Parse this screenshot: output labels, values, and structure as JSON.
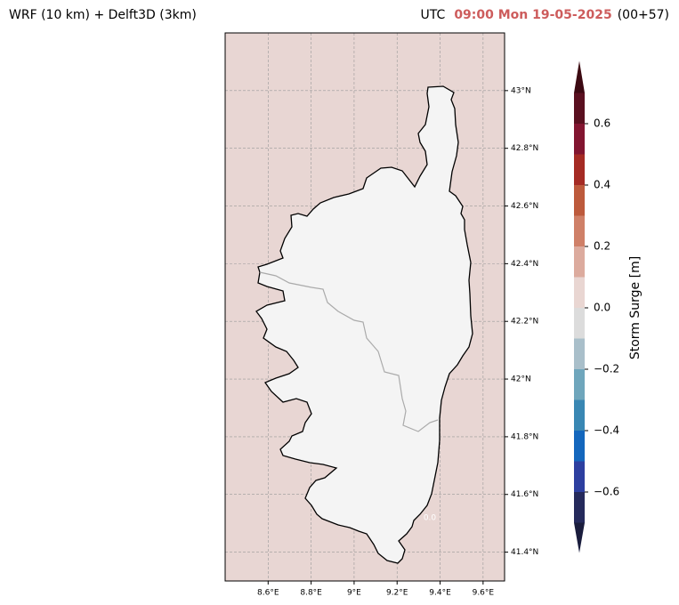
{
  "title_left": "WRF (10 km) + Delft3D (3km)",
  "title_right": {
    "prefix": "UTC",
    "time": "09:00 Mon 19-05-2025",
    "lead": "(00+57)"
  },
  "map": {
    "xlim": [
      8.4,
      9.7
    ],
    "ylim": [
      41.3,
      43.2
    ],
    "xticks": [
      {
        "value": 8.6,
        "label": "8.6°E"
      },
      {
        "value": 8.8,
        "label": "8.8°E"
      },
      {
        "value": 9.0,
        "label": "9°E"
      },
      {
        "value": 9.2,
        "label": "9.2°E"
      },
      {
        "value": 9.4,
        "label": "9.4°E"
      },
      {
        "value": 9.6,
        "label": "9.6°E"
      }
    ],
    "yticks": [
      {
        "value": 41.4,
        "label": "41.4°N"
      },
      {
        "value": 41.6,
        "label": "41.6°N"
      },
      {
        "value": 41.8,
        "label": "41.8°N"
      },
      {
        "value": 42.0,
        "label": "42°N"
      },
      {
        "value": 42.2,
        "label": "42.2°N"
      },
      {
        "value": 42.4,
        "label": "42.4°N"
      },
      {
        "value": 42.6,
        "label": "42.6°N"
      },
      {
        "value": 42.8,
        "label": "42.8°N"
      },
      {
        "value": 43.0,
        "label": "43°N"
      }
    ],
    "grid": true,
    "sea_color": "#e8d6d3",
    "land_color": "#f4f4f4",
    "contour_label": "0.0"
  },
  "colorbar": {
    "label": "Storm Surge [m]",
    "levels": [
      -0.7,
      -0.6,
      -0.5,
      -0.4,
      -0.3,
      -0.2,
      -0.1,
      0.0,
      0.1,
      0.2,
      0.3,
      0.4,
      0.5,
      0.6,
      0.7
    ],
    "colors": [
      "#252a5c",
      "#2d3fa0",
      "#1467bd",
      "#3987b3",
      "#6fa6bc",
      "#a9bfca",
      "#dcdcdc",
      "#e9d6d2",
      "#dcab9e",
      "#cf8068",
      "#bd5a3c",
      "#a52b24",
      "#821530",
      "#5a1020"
    ],
    "extend_colors": [
      "#1a1d3d",
      "#3c0912"
    ],
    "ticks": [
      {
        "value": -0.6,
        "label": "−0.6"
      },
      {
        "value": -0.4,
        "label": "−0.4"
      },
      {
        "value": -0.2,
        "label": "−0.2"
      },
      {
        "value": 0.0,
        "label": "0.0"
      },
      0.2,
      0.4,
      0.6
    ]
  }
}
